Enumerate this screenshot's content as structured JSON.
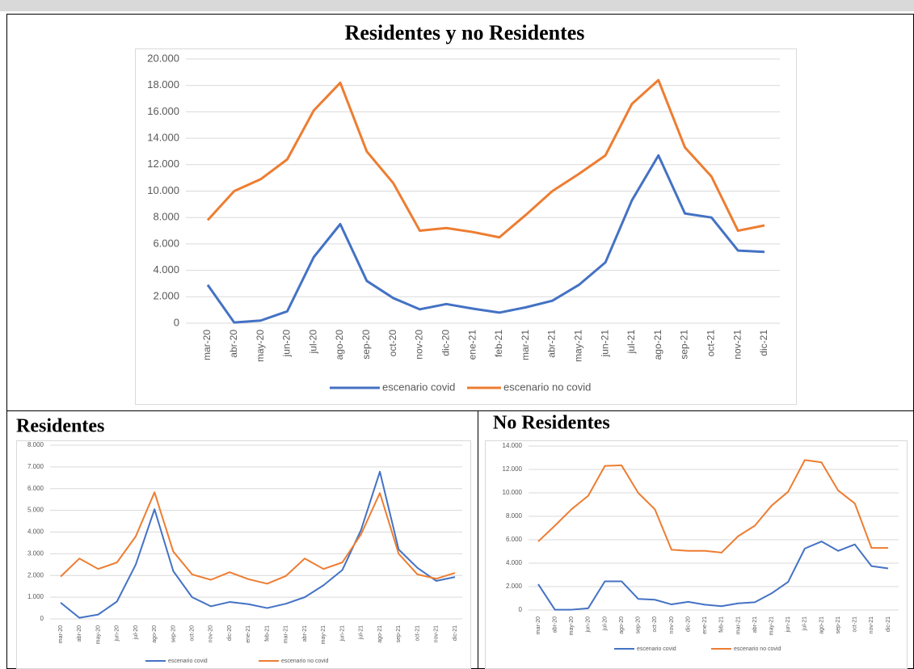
{
  "chart_data": [
    {
      "type": "line",
      "title": "Residentes y no Residentes",
      "categories": [
        "mar-20",
        "abr-20",
        "may-20",
        "jun-20",
        "jul-20",
        "ago-20",
        "sep-20",
        "oct-20",
        "nov-20",
        "dic-20",
        "ene-21",
        "feb-21",
        "mar-21",
        "abr-21",
        "may-21",
        "jun-21",
        "jul-21",
        "ago-21",
        "sep-21",
        "oct-21",
        "nov-21",
        "dic-21"
      ],
      "series": [
        {
          "name": "escenario covid",
          "color": "#4472c4",
          "values": [
            2900,
            50,
            200,
            900,
            5000,
            7500,
            3200,
            1900,
            1050,
            1450,
            1100,
            800,
            1200,
            1700,
            2900,
            4600,
            9300,
            12700,
            8300,
            8000,
            5500,
            5400
          ]
        },
        {
          "name": "escenario no covid",
          "color": "#ed7d31",
          "values": [
            7800,
            10000,
            10900,
            12400,
            16100,
            18200,
            13000,
            10600,
            7000,
            7200,
            6900,
            6500,
            8200,
            10000,
            11300,
            12700,
            16600,
            18400,
            13300,
            11100,
            7000,
            7400
          ]
        }
      ],
      "ylim": [
        0,
        20000
      ],
      "yticks": [
        0,
        {
          "value": 2000,
          "label": "2.000"
        },
        {
          "value": 4000,
          "label": "4.000"
        },
        {
          "value": 6000,
          "label": "6.000"
        },
        {
          "value": 8000,
          "label": "8.000"
        },
        {
          "value": 10000,
          "label": "10.000"
        },
        {
          "value": 12000,
          "label": "12.000"
        },
        {
          "value": 14000,
          "label": "14.000"
        },
        {
          "value": 16000,
          "label": "16.000"
        },
        {
          "value": 18000,
          "label": "18.000"
        },
        {
          "value": 20000,
          "label": "20.000"
        }
      ],
      "grid": true,
      "legend": "bottom"
    },
    {
      "type": "line",
      "title": "Residentes",
      "categories": [
        "mar-20",
        "abr-20",
        "may-20",
        "jun-20",
        "jul-20",
        "ago-20",
        "sep-20",
        "oct-20",
        "nov-20",
        "dic-20",
        "ene-21",
        "feb-21",
        "mar-21",
        "abr-21",
        "may-21",
        "jun-21",
        "jul-21",
        "ago-21",
        "sep-21",
        "oct-21",
        "nov-21",
        "dic-21"
      ],
      "series": [
        {
          "name": "escenario covid",
          "color": "#4472c4",
          "values": [
            750,
            50,
            200,
            800,
            2500,
            5050,
            2200,
            1000,
            580,
            780,
            680,
            500,
            700,
            1000,
            1550,
            2250,
            4100,
            6780,
            3200,
            2350,
            1750,
            1930
          ]
        },
        {
          "name": "escenario no covid",
          "color": "#ed7d31",
          "values": [
            1950,
            2780,
            2300,
            2600,
            3800,
            5830,
            3100,
            2050,
            1800,
            2150,
            1830,
            1620,
            1980,
            2780,
            2300,
            2600,
            3900,
            5800,
            3000,
            2050,
            1850,
            2120
          ]
        }
      ],
      "ylim": [
        0,
        8000
      ],
      "yticks": [
        0,
        {
          "value": 1000,
          "label": "1.000"
        },
        {
          "value": 2000,
          "label": "2.000"
        },
        {
          "value": 3000,
          "label": "3.000"
        },
        {
          "value": 4000,
          "label": "4.000"
        },
        {
          "value": 5000,
          "label": "5.000"
        },
        {
          "value": 6000,
          "label": "6.000"
        },
        {
          "value": 7000,
          "label": "7.000"
        },
        {
          "value": 8000,
          "label": "8.000"
        }
      ],
      "grid": true,
      "legend": "bottom"
    },
    {
      "type": "line",
      "title": "No Residentes",
      "categories": [
        "mar-20",
        "abr-20",
        "may-20",
        "jun-20",
        "jul-20",
        "ago-20",
        "sep-20",
        "oct-20",
        "nov-20",
        "dic-20",
        "ene-21",
        "feb-21",
        "mar-21",
        "abr-21",
        "may-21",
        "jun-21",
        "jul-21",
        "ago-21",
        "sep-21",
        "oct-21",
        "nov-21",
        "dic-21"
      ],
      "series": [
        {
          "name": "escenario covid",
          "color": "#4472c4",
          "values": [
            2200,
            30,
            30,
            150,
            2450,
            2450,
            950,
            880,
            480,
            700,
            460,
            330,
            570,
            660,
            1420,
            2400,
            5250,
            5850,
            5050,
            5600,
            3750,
            3550
          ]
        },
        {
          "name": "escenario no covid",
          "color": "#ed7d31",
          "values": [
            5850,
            7200,
            8600,
            9750,
            12300,
            12350,
            10000,
            8600,
            5150,
            5050,
            5050,
            4900,
            6300,
            7200,
            8900,
            10100,
            12800,
            12600,
            10200,
            9100,
            5300,
            5300
          ]
        }
      ],
      "ylim": [
        0,
        14000
      ],
      "yticks": [
        0,
        {
          "value": 2000,
          "label": "2.000"
        },
        {
          "value": 4000,
          "label": "4.000"
        },
        {
          "value": 6000,
          "label": "6.000"
        },
        {
          "value": 8000,
          "label": "8.000"
        },
        {
          "value": 10000,
          "label": "10.000"
        },
        {
          "value": 12000,
          "label": "12.000"
        },
        {
          "value": 14000,
          "label": "14.000"
        }
      ],
      "grid": true,
      "legend": "bottom"
    }
  ]
}
